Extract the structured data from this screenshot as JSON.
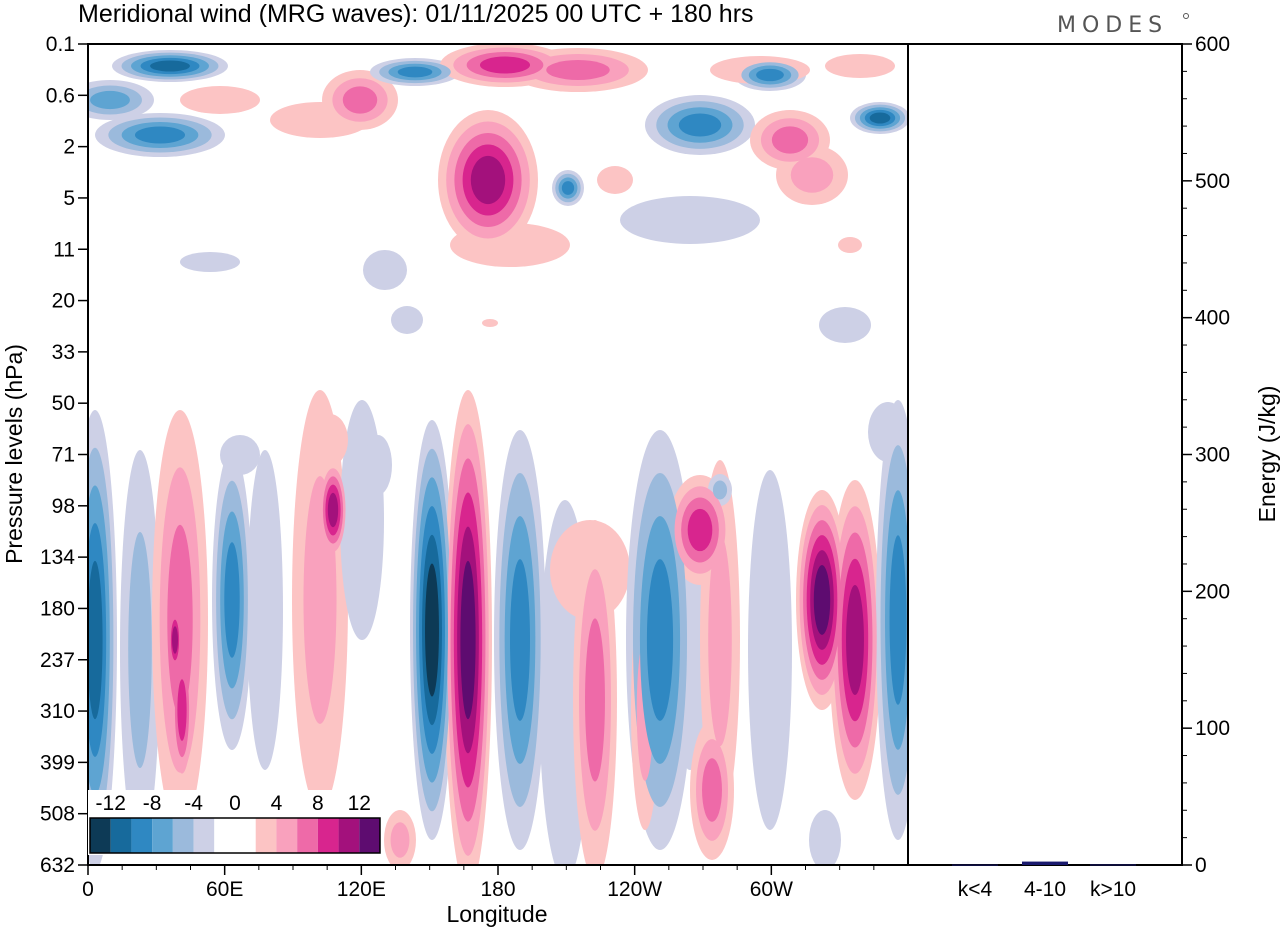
{
  "chart_data": [
    {
      "type": "heatmap",
      "title": "Meridional wind (MRG waves):  01/11/2025  00 UTC  + 180 hrs",
      "xlabel": "Longitude",
      "ylabel": "Pressure levels (hPa)",
      "x_ticks": [
        "0",
        "60E",
        "120E",
        "180",
        "120W",
        "60W"
      ],
      "x_tick_degrees": [
        0,
        60,
        120,
        180,
        240,
        300
      ],
      "x_range_degrees": [
        0,
        360
      ],
      "y_ticks": [
        "0.1",
        "0.6",
        "2",
        "5",
        "11",
        "20",
        "33",
        "50",
        "71",
        "98",
        "134",
        "180",
        "237",
        "310",
        "399",
        "508",
        "632"
      ],
      "colorbar_labels": [
        "-12",
        "-8",
        "-4",
        "0",
        "4",
        "8",
        "12"
      ],
      "colorbar_levels": [
        -14,
        -12,
        -10,
        -8,
        -6,
        -4,
        -2,
        2,
        4,
        6,
        8,
        10,
        12,
        14
      ],
      "colorbar_colors": [
        "#0d3a56",
        "#176a9c",
        "#2f88c2",
        "#5ea4d2",
        "#9bbadc",
        "#cdd0e6",
        "#ffffff",
        "#ffffff",
        "#fcc4c4",
        "#f9a1bd",
        "#ee6aa8",
        "#d8258e",
        "#a3117c",
        "#5e0c70"
      ],
      "features": [
        {
          "sign": "negative",
          "peak": -12,
          "longitude": 150,
          "level": "180"
        },
        {
          "sign": "positive",
          "peak": 12,
          "longitude": 167,
          "level": "134"
        },
        {
          "sign": "positive",
          "peak": 10,
          "longitude": 167,
          "level": "310"
        },
        {
          "sign": "positive",
          "peak": 8,
          "longitude": 107,
          "level": "98"
        },
        {
          "sign": "positive",
          "peak": 8,
          "longitude": 322,
          "level": "180"
        },
        {
          "sign": "positive",
          "peak": 8,
          "longitude": 340,
          "level": "237"
        },
        {
          "sign": "negative",
          "peak": -8,
          "longitude": 0,
          "level": "180"
        },
        {
          "sign": "negative",
          "peak": -6,
          "longitude": 64,
          "level": "180"
        },
        {
          "sign": "negative",
          "peak": -10,
          "longitude": 36,
          "level": "0.1"
        },
        {
          "sign": "negative",
          "peak": -8,
          "longitude": 150,
          "level": "0.6"
        },
        {
          "sign": "positive",
          "peak": 8,
          "longitude": 170,
          "level": "0.1"
        },
        {
          "sign": "positive",
          "peak": 8,
          "longitude": 170,
          "level": "2"
        }
      ]
    },
    {
      "type": "bar",
      "ylabel": "Energy (J/kg)",
      "ylim": [
        0,
        600
      ],
      "y_ticks": [
        "0",
        "100",
        "200",
        "300",
        "400",
        "500",
        "600"
      ],
      "categories": [
        "k<4",
        "4-10",
        "k>10"
      ],
      "values": [
        0.3,
        2.5,
        0.4
      ],
      "bar_color": "#1a1a6e"
    }
  ],
  "logo_text": "MODES"
}
